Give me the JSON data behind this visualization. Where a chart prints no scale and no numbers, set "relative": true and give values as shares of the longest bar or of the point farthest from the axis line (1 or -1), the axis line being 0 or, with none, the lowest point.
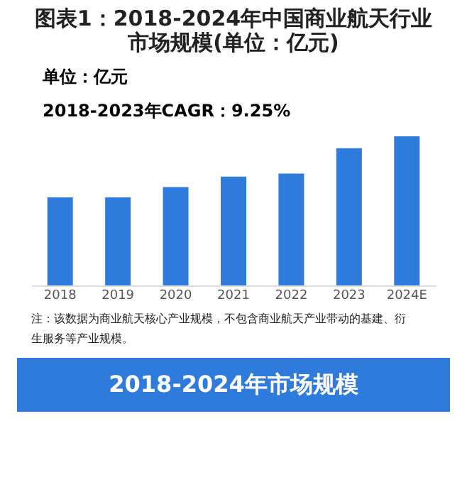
{
  "chart_data": {
    "type": "bar",
    "title": "图表1：2018-2024年中国商业航天行业市场规模(单位：亿元)",
    "categories": [
      "2018",
      "2019",
      "2020",
      "2021",
      "2022",
      "2023",
      "2024E"
    ],
    "values": [
      0.59,
      0.59,
      0.66,
      0.73,
      0.75,
      0.92,
      1
    ],
    "color": "#2f7bdc",
    "relative": true,
    "grid": false,
    "annotations": [
      "单位：亿元",
      "2018-2023年CAGR：9.25%",
      "注：该数据为商业航天核心产业规模，不包含商业航天产业带动的基建、衍生服务等产业规模。",
      "2018-2024年市场规模"
    ]
  }
}
